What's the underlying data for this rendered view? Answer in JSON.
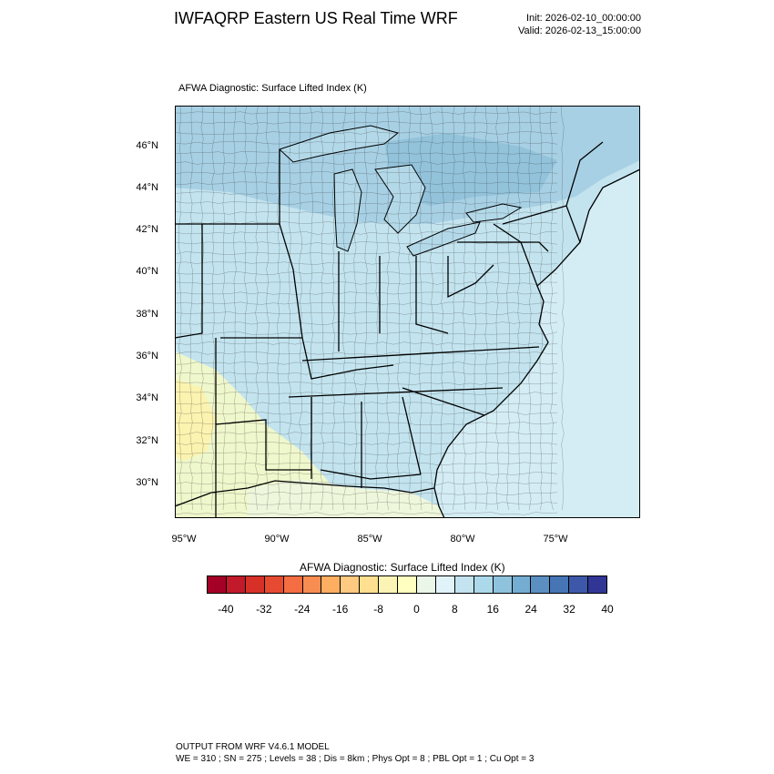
{
  "header": {
    "title": "IWFAQRP Eastern US Real Time WRF",
    "init": "Init: 2026-02-10_00:00:00",
    "valid": "Valid: 2026-02-13_15:00:00"
  },
  "map": {
    "field_title": "AFWA Diagnostic: Surface Lifted Index   (K)",
    "lat_labels": [
      "46°N",
      "44°N",
      "42°N",
      "40°N",
      "38°N",
      "36°N",
      "34°N",
      "32°N",
      "30°N"
    ],
    "lon_labels": [
      "95°W",
      "90°W",
      "85°W",
      "80°W",
      "75°W"
    ],
    "colors": {
      "ocean": "#d4edf5",
      "land_base": "#c3e4ef",
      "north_land": "#a2cde2",
      "lakes": "#b3d9e9",
      "ridge": "#8ebfd8",
      "warm_sw": "#f4f8c8",
      "yellow_sw": "#fbf3b0",
      "gulf": "#eef7dc",
      "border": "#000000"
    }
  },
  "colorbar": {
    "title": "AFWA Diagnostic: Surface Lifted Index  (K)",
    "labels": [
      "-40",
      "-32",
      "-24",
      "-16",
      "-8",
      "0",
      "8",
      "16",
      "24",
      "32",
      "40"
    ],
    "colors": [
      "#a50026",
      "#c2192b",
      "#d73027",
      "#e64a31",
      "#f46d43",
      "#f88d52",
      "#fdae61",
      "#fec980",
      "#fee090",
      "#fcf4b5",
      "#ffffbf",
      "#e9f6e8",
      "#e0f3f8",
      "#c2e3ef",
      "#abd9e9",
      "#8fc3dd",
      "#74add1",
      "#5b8fc2",
      "#4575b4",
      "#3d58a8",
      "#313695"
    ]
  },
  "footer": {
    "line1": "OUTPUT FROM WRF V4.6.1 MODEL",
    "line2": "WE = 310 ; SN = 275 ; Levels = 38 ; Dis = 8km ; Phys Opt = 8 ; PBL Opt = 1 ; Cu Opt = 3"
  }
}
